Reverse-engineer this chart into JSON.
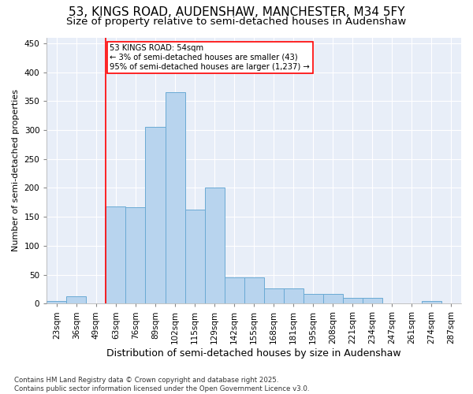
{
  "title": "53, KINGS ROAD, AUDENSHAW, MANCHESTER, M34 5FY",
  "subtitle": "Size of property relative to semi-detached houses in Audenshaw",
  "xlabel": "Distribution of semi-detached houses by size in Audenshaw",
  "ylabel": "Number of semi-detached properties",
  "categories": [
    "23sqm",
    "36sqm",
    "49sqm",
    "63sqm",
    "76sqm",
    "89sqm",
    "102sqm",
    "115sqm",
    "129sqm",
    "142sqm",
    "155sqm",
    "168sqm",
    "181sqm",
    "195sqm",
    "208sqm",
    "221sqm",
    "234sqm",
    "247sqm",
    "261sqm",
    "274sqm",
    "287sqm"
  ],
  "bar_values": [
    5,
    12,
    0,
    168,
    167,
    305,
    365,
    163,
    200,
    45,
    45,
    26,
    26,
    17,
    17,
    10,
    10,
    0,
    0,
    4,
    0
  ],
  "bar_color": "#b8d4ee",
  "bar_edge_color": "#6aaad4",
  "vline_index": 2.5,
  "annotation_text": "53 KINGS ROAD: 54sqm\n← 3% of semi-detached houses are smaller (43)\n95% of semi-detached houses are larger (1,237) →",
  "ylim": [
    0,
    460
  ],
  "yticks": [
    0,
    50,
    100,
    150,
    200,
    250,
    300,
    350,
    400,
    450
  ],
  "bg_color": "#e8eef8",
  "footer": "Contains HM Land Registry data © Crown copyright and database right 2025.\nContains public sector information licensed under the Open Government Licence v3.0.",
  "title_fontsize": 11,
  "subtitle_fontsize": 9.5,
  "ylabel_fontsize": 8,
  "xlabel_fontsize": 9,
  "tick_fontsize": 7.5,
  "footer_fontsize": 6.2
}
